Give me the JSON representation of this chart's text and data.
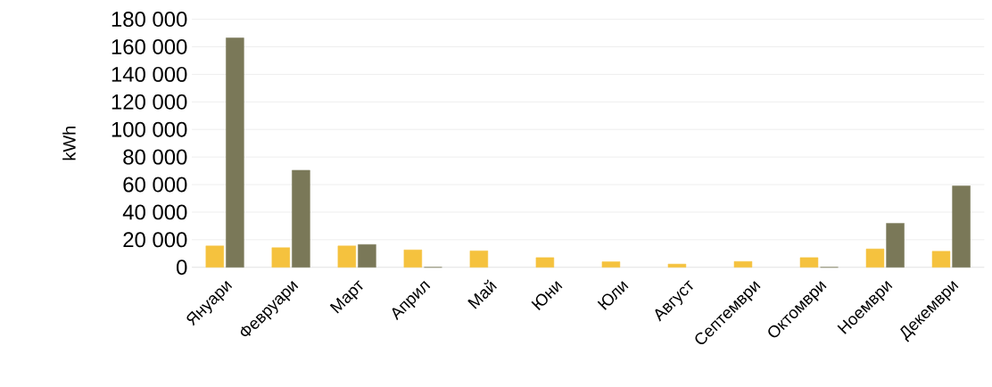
{
  "chart_data": {
    "type": "bar",
    "ylabel": "kWh",
    "categories": [
      "Януари",
      "Февруари",
      "Март",
      "Април",
      "Май",
      "Юни",
      "Юли",
      "Август",
      "Септември",
      "Октомври",
      "Ноември",
      "Декември"
    ],
    "series": [
      {
        "color": "#f5c23e",
        "values": [
          15500,
          14200,
          15500,
          12600,
          11900,
          7000,
          4000,
          2300,
          4200,
          7000,
          13300,
          11600
        ]
      },
      {
        "color": "#7a7858",
        "values": [
          166400,
          70400,
          16500,
          0,
          null,
          null,
          null,
          null,
          null,
          0,
          31900,
          59000
        ]
      }
    ],
    "ylim": [
      0,
      180000
    ],
    "yticks": [
      {
        "value": 0,
        "label": "0"
      },
      {
        "value": 20000,
        "label": "20 000"
      },
      {
        "value": 40000,
        "label": "40 000"
      },
      {
        "value": 60000,
        "label": "60 000"
      },
      {
        "value": 80000,
        "label": "80 000"
      },
      {
        "value": 100000,
        "label": "100 000"
      },
      {
        "value": 120000,
        "label": "120 000"
      },
      {
        "value": 140000,
        "label": "140 000"
      },
      {
        "value": 160000,
        "label": "160 000"
      },
      {
        "value": 180000,
        "label": "180 000"
      }
    ],
    "grid": "y"
  }
}
